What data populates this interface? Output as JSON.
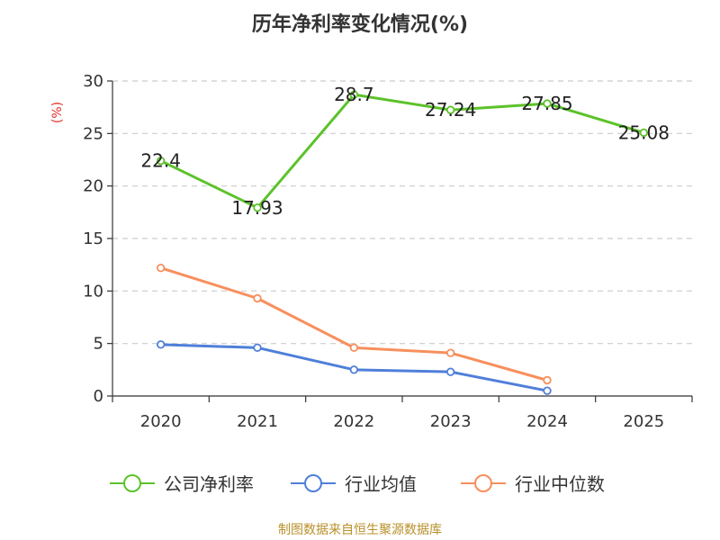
{
  "chart_data": {
    "type": "line",
    "title": "历年净利率变化情况(%)",
    "ylabel": "(%)",
    "xlabel": "",
    "categories": [
      "2020",
      "2021",
      "2022",
      "2023",
      "2024",
      "2025"
    ],
    "ylim": [
      0,
      30
    ],
    "yticks": [
      0,
      5,
      10,
      15,
      20,
      25,
      30
    ],
    "grid": true,
    "legend_position": "bottom",
    "series": [
      {
        "name": "公司净利率",
        "color": "#5cc22a",
        "show_labels": true,
        "values": [
          22.4,
          17.93,
          28.7,
          27.24,
          27.85,
          25.08
        ]
      },
      {
        "name": "行业均值",
        "color": "#4f7fd9",
        "show_labels": false,
        "values": [
          4.9,
          4.6,
          2.5,
          2.3,
          0.5,
          null
        ]
      },
      {
        "name": "行业中位数",
        "color": "#f88f5d",
        "show_labels": false,
        "values": [
          12.2,
          9.3,
          4.6,
          4.1,
          1.5,
          null
        ]
      }
    ]
  },
  "source_text": "制图数据来自恒生聚源数据库"
}
